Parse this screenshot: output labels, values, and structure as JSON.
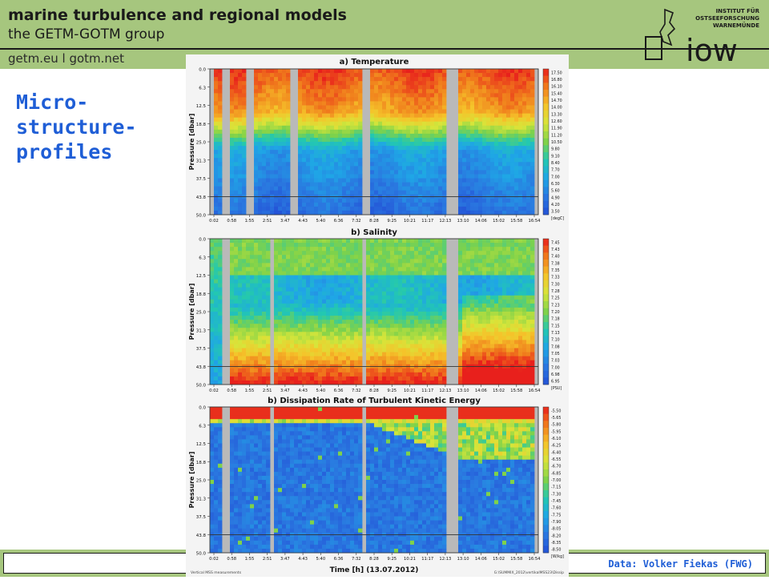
{
  "header": {
    "title": "marine turbulence and regional models",
    "subtitle": "the GETM-GOTM group",
    "links": "getm.eu  l  gotm.net",
    "logo_text": "iow",
    "institute": [
      "INSTITUT FÜR",
      "OSTSEEFORSCHUNG",
      "WARNEMÜNDE"
    ]
  },
  "slide": {
    "title_lines": [
      "Micro-",
      "structure-",
      "profiles"
    ]
  },
  "credit": "Data: Volker Fiekas (FWG)",
  "figure_footer": {
    "left": "Vertical MSS measurements",
    "right": "G:\\SUMMIX_2012\\vertikalMSS23\\Dissip"
  },
  "chart_data": [
    {
      "type": "heatmap",
      "title": "a) Temperature",
      "ylabel": "Pressure [dbar]",
      "xlabel": "",
      "yticks": [
        "0.0",
        "6.3",
        "12.5",
        "18.8",
        "25.0",
        "31.3",
        "37.5",
        "43.8",
        "50.0"
      ],
      "xticks": [
        "0:02",
        "0:58",
        "1:55",
        "2:51",
        "3:47",
        "4:43",
        "5:40",
        "6:36",
        "7:32",
        "8:28",
        "9:25",
        "10:21",
        "11:17",
        "12:13",
        "13:10",
        "14:06",
        "15:02",
        "15:58",
        "16:54"
      ],
      "colorbar_unit": "[degC]",
      "colorbar_labels": [
        "17.50",
        "16.80",
        "16.10",
        "15.40",
        "14.70",
        "14.00",
        "13.30",
        "12.60",
        "11.90",
        "11.20",
        "10.50",
        "9.80",
        "9.10",
        "8.40",
        "7.70",
        "7.00",
        "6.30",
        "5.60",
        "4.90",
        "4.20",
        "3.50"
      ],
      "colormap": [
        "#e8201c",
        "#f07b1c",
        "#f5c32a",
        "#d7e53a",
        "#7fd24a",
        "#23c8b0",
        "#1fa6e6",
        "#2a78e0",
        "#2350d6"
      ],
      "profile_profile": "warm_top",
      "gaps_hours": [
        [
          0.0,
          0.25
        ],
        [
          0.72,
          0.97
        ],
        [
          1.98,
          2.35
        ],
        [
          4.2,
          4.55
        ],
        [
          8.0,
          8.35
        ],
        [
          12.25,
          12.85
        ],
        [
          16.95,
          17.1
        ]
      ],
      "grid_line_pressure": 43.8
    },
    {
      "type": "heatmap",
      "title": "b) Salinity",
      "ylabel": "Pressure [dbar]",
      "xlabel": "",
      "yticks": [
        "0.0",
        "6.3",
        "12.5",
        "18.8",
        "25.0",
        "31.3",
        "37.5",
        "43.8",
        "50.0"
      ],
      "xticks": [
        "0:02",
        "0:58",
        "1:55",
        "2:51",
        "3:47",
        "4:43",
        "5:40",
        "6:36",
        "7:32",
        "8:28",
        "9:25",
        "10:21",
        "11:17",
        "12:13",
        "13:10",
        "14:06",
        "15:02",
        "15:58",
        "16:54"
      ],
      "colorbar_unit": "[PSU]",
      "colorbar_labels": [
        "7.45",
        "7.43",
        "7.40",
        "7.38",
        "7.35",
        "7.33",
        "7.30",
        "7.28",
        "7.25",
        "7.23",
        "7.20",
        "7.18",
        "7.15",
        "7.13",
        "7.10",
        "7.08",
        "7.05",
        "7.03",
        "7.00",
        "6.98",
        "6.95"
      ],
      "colormap": [
        "#e8201c",
        "#f07b1c",
        "#f5c32a",
        "#d7e53a",
        "#7fd24a",
        "#23c8b0",
        "#1fa6e6",
        "#2a78e0",
        "#2350d6"
      ],
      "profile_profile": "salty_bottom",
      "gaps_hours": [
        [
          0.0,
          0.05
        ],
        [
          0.72,
          0.95
        ],
        [
          3.05,
          3.25
        ],
        [
          7.92,
          8.2
        ],
        [
          12.35,
          12.85
        ],
        [
          16.95,
          17.1
        ]
      ],
      "grid_line_pressure": 43.8
    },
    {
      "type": "heatmap",
      "title": "b) Dissipation Rate of Turbulent Kinetic Energy",
      "ylabel": "Pressure [dbar]",
      "xlabel": "Time [h]   (13.07.2012)",
      "yticks": [
        "0.0",
        "6.3",
        "12.5",
        "18.8",
        "25.0",
        "31.3",
        "37.5",
        "43.8",
        "50.0"
      ],
      "xticks": [
        "0:02",
        "0:58",
        "1:55",
        "2:51",
        "3:47",
        "4:43",
        "5:40",
        "6:36",
        "7:32",
        "8:28",
        "9:25",
        "10:21",
        "11:17",
        "12:13",
        "13:10",
        "14:06",
        "15:02",
        "15:58",
        "16:54"
      ],
      "colorbar_unit": "[W/kg]",
      "colorbar_labels": [
        "-5.50",
        "-5.65",
        "-5.80",
        "-5.95",
        "-6.10",
        "-6.25",
        "-6.40",
        "-6.55",
        "-6.70",
        "-6.85",
        "-7.00",
        "-7.15",
        "-7.30",
        "-7.45",
        "-7.60",
        "-7.75",
        "-7.90",
        "-8.05",
        "-8.20",
        "-8.35",
        "-8.50"
      ],
      "colormap": [
        "#e8201c",
        "#f07b1c",
        "#f5c32a",
        "#d7e53a",
        "#7fd24a",
        "#23c8b0",
        "#1fa6e6",
        "#2a78e0",
        "#2350d6"
      ],
      "profile_profile": "energetic_top",
      "gaps_hours": [
        [
          0.0,
          0.1
        ],
        [
          0.72,
          0.95
        ],
        [
          3.05,
          3.25
        ],
        [
          7.92,
          8.2
        ],
        [
          12.35,
          12.85
        ],
        [
          16.95,
          17.1
        ]
      ],
      "grid_line_pressure": 43.8
    }
  ]
}
